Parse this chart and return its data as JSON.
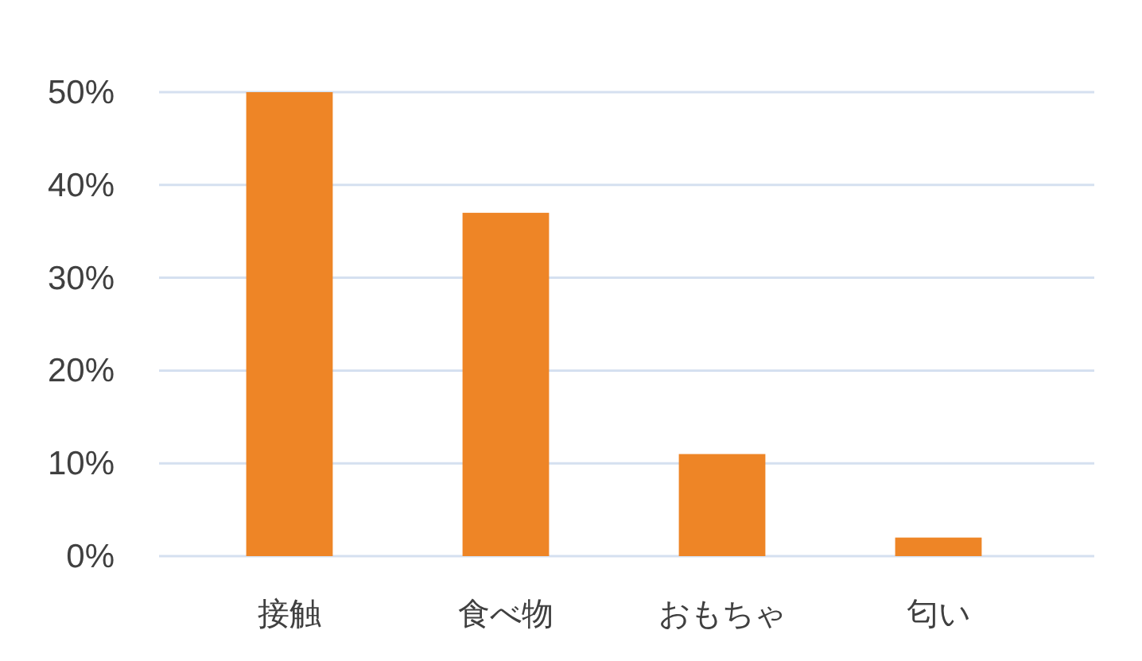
{
  "chart_data": {
    "type": "bar",
    "categories": [
      "接触",
      "食べ物",
      "おもちゃ",
      "匂い"
    ],
    "values": [
      50,
      37,
      11,
      2
    ],
    "color": "#ee8526",
    "ylim": [
      0,
      50
    ],
    "yticks": [
      {
        "value": 0,
        "label": "0%"
      },
      {
        "value": 10,
        "label": "10%"
      },
      {
        "value": 20,
        "label": "20%"
      },
      {
        "value": 30,
        "label": "30%"
      },
      {
        "value": 40,
        "label": "40%"
      },
      {
        "value": 50,
        "label": "50%"
      }
    ],
    "grid": "y"
  }
}
